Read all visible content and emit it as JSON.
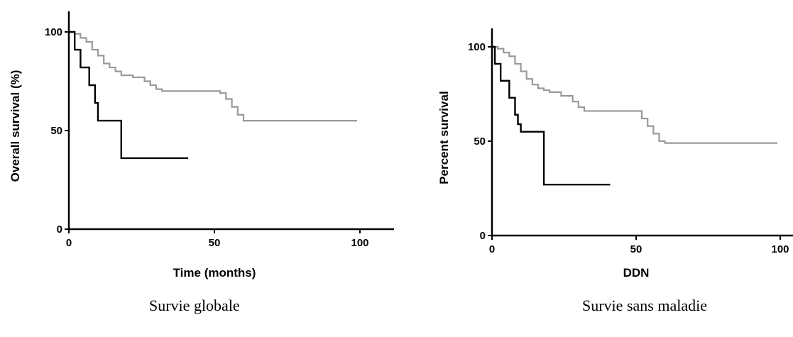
{
  "chart_data": [
    {
      "type": "line",
      "title": "",
      "xlabel": "Time (months)",
      "ylabel": "Overall survival (%)",
      "xlim": [
        0,
        110
      ],
      "ylim": [
        0,
        110
      ],
      "xticks": [
        0,
        50,
        100
      ],
      "yticks": [
        0,
        50,
        100
      ],
      "grid": false,
      "caption": "Survie globale",
      "series": [
        {
          "color": "#999999",
          "x": [
            0,
            2,
            4,
            6,
            8,
            10,
            12,
            14,
            16,
            18,
            22,
            26,
            28,
            30,
            32,
            38,
            44,
            52,
            54,
            56,
            58,
            60,
            70,
            80,
            99
          ],
          "y": [
            100,
            99,
            97,
            95,
            91,
            88,
            84,
            82,
            80,
            78,
            77,
            75,
            73,
            71,
            70,
            70,
            70,
            69,
            66,
            62,
            58,
            55,
            55,
            55,
            55
          ]
        },
        {
          "color": "#000000",
          "x": [
            0,
            2,
            4,
            7,
            9,
            10,
            18,
            30,
            41
          ],
          "y": [
            100,
            91,
            82,
            73,
            64,
            55,
            36,
            36,
            36
          ]
        }
      ]
    },
    {
      "type": "line",
      "title": "",
      "xlabel": "DDN",
      "ylabel": "Percent survival",
      "xlim": [
        0,
        110
      ],
      "ylim": [
        0,
        110
      ],
      "xticks": [
        0,
        50,
        100
      ],
      "yticks": [
        0,
        50,
        100
      ],
      "grid": false,
      "caption": "Survie sans maladie",
      "series": [
        {
          "color": "#999999",
          "x": [
            0,
            2,
            4,
            6,
            8,
            10,
            12,
            14,
            16,
            18,
            20,
            24,
            28,
            30,
            32,
            40,
            50,
            52,
            54,
            56,
            58,
            60,
            70,
            80,
            99
          ],
          "y": [
            100,
            99,
            97,
            95,
            91,
            87,
            83,
            80,
            78,
            77,
            76,
            74,
            71,
            68,
            66,
            66,
            66,
            62,
            58,
            54,
            50,
            49,
            49,
            49,
            49
          ]
        },
        {
          "color": "#000000",
          "x": [
            0,
            1,
            3,
            6,
            8,
            9,
            10,
            18,
            30,
            41
          ],
          "y": [
            100,
            91,
            82,
            73,
            64,
            59,
            55,
            27,
            27,
            27
          ]
        }
      ]
    }
  ]
}
